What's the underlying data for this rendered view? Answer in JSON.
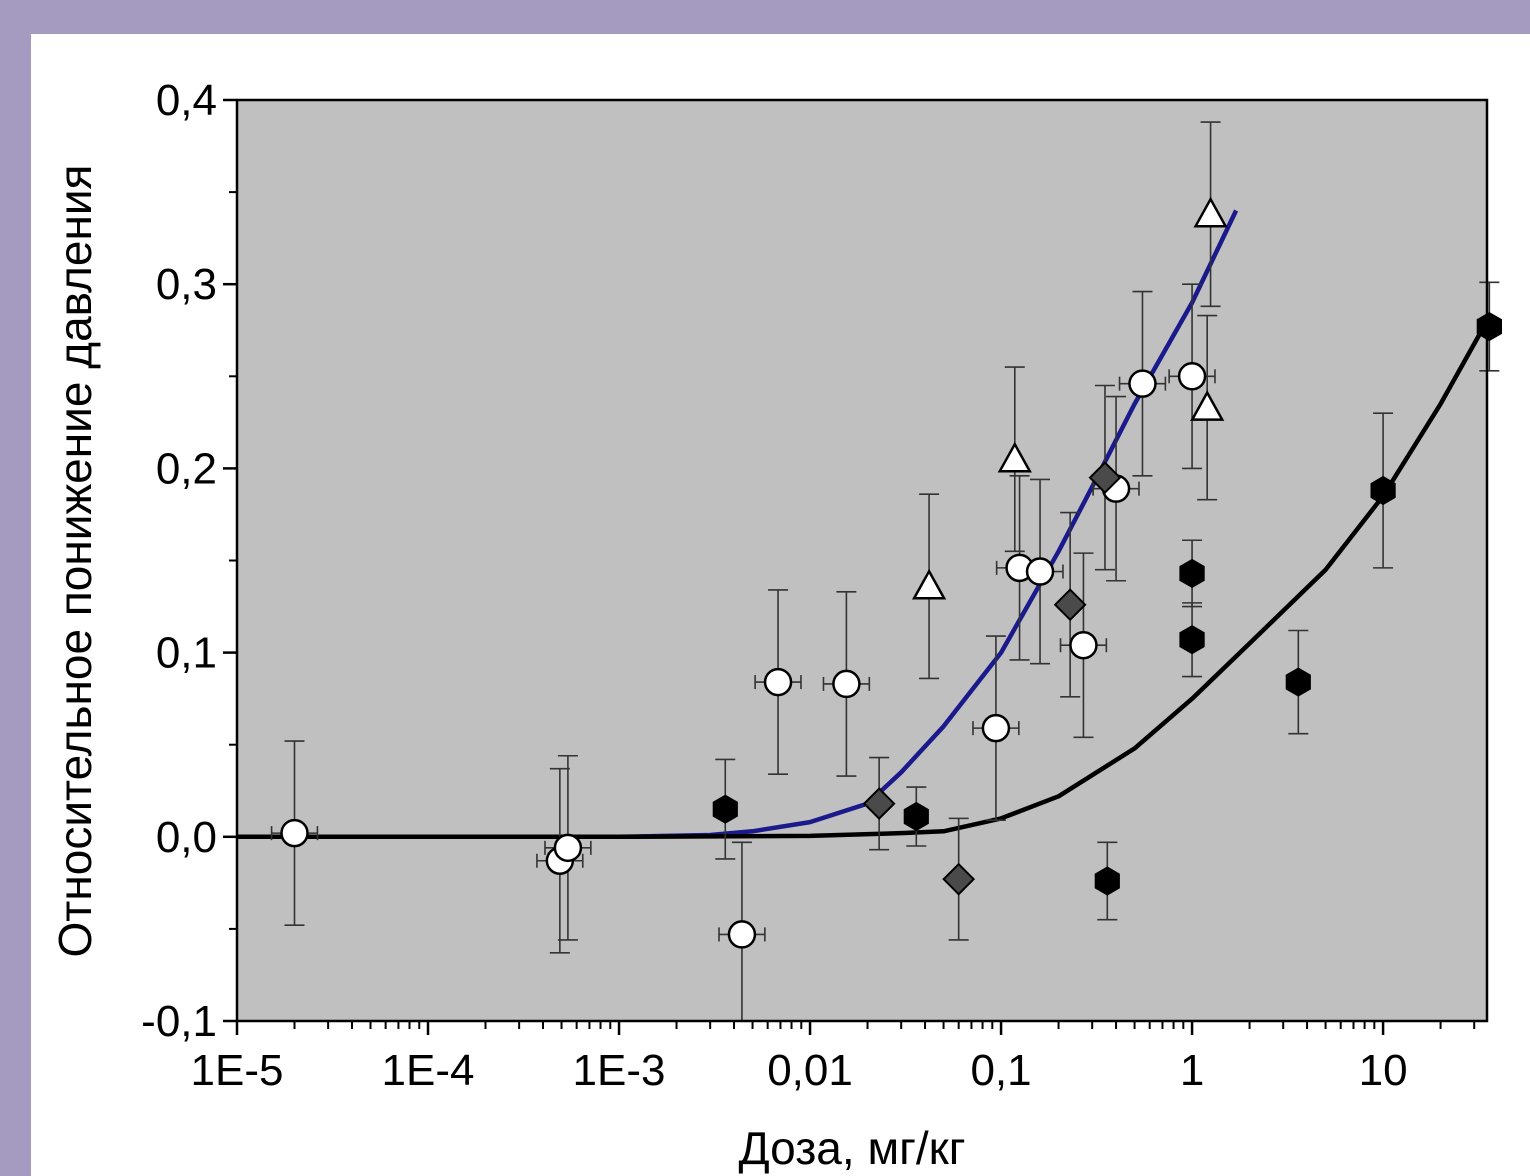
{
  "chart_data": {
    "type": "scatter",
    "title": "",
    "xlabel": "Доза, мг/кг",
    "ylabel": "Относительное понижение давления",
    "xscale": "log",
    "xlim": [
      1e-05,
      35
    ],
    "ylim": [
      -0.1,
      0.4
    ],
    "x_ticks": [
      {
        "value": 1e-05,
        "label": "1E-5"
      },
      {
        "value": 0.0001,
        "label": "1E-4"
      },
      {
        "value": 0.001,
        "label": "1E-3"
      },
      {
        "value": 0.01,
        "label": "0,01"
      },
      {
        "value": 0.1,
        "label": "0,1"
      },
      {
        "value": 1,
        "label": "1"
      },
      {
        "value": 10,
        "label": "10"
      }
    ],
    "y_ticks": [
      {
        "value": -0.1,
        "label": "-0,1"
      },
      {
        "value": 0.0,
        "label": "0,0"
      },
      {
        "value": 0.1,
        "label": "0,1"
      },
      {
        "value": 0.2,
        "label": "0,2"
      },
      {
        "value": 0.3,
        "label": "0,3"
      },
      {
        "value": 0.4,
        "label": "0,4"
      }
    ],
    "grid": false,
    "plot_background": "#c0c0c0",
    "series": [
      {
        "marker": "circle-open",
        "points": [
          {
            "x": 2e-05,
            "y": 0.002,
            "yerr": 0.05,
            "xerr_log": 0.12
          },
          {
            "x": 0.00049,
            "y": -0.013,
            "yerr": 0.05,
            "xerr_log": 0.12
          },
          {
            "x": 0.00054,
            "y": -0.006,
            "yerr": 0.05,
            "xerr_log": 0.12
          },
          {
            "x": 0.0044,
            "y": -0.053,
            "yerr": 0.05,
            "xerr_log": 0.12
          },
          {
            "x": 0.0068,
            "y": 0.084,
            "yerr": 0.05,
            "xerr_log": 0.12
          },
          {
            "x": 0.0155,
            "y": 0.083,
            "yerr": 0.05,
            "xerr_log": 0.12
          },
          {
            "x": 0.094,
            "y": 0.059,
            "yerr": 0.05,
            "xerr_log": 0.12
          },
          {
            "x": 0.125,
            "y": 0.146,
            "yerr": 0.05,
            "xerr_log": 0.12
          },
          {
            "x": 0.16,
            "y": 0.144,
            "yerr": 0.05,
            "xerr_log": 0.12
          },
          {
            "x": 0.27,
            "y": 0.104,
            "yerr": 0.05,
            "xerr_log": 0.12
          },
          {
            "x": 0.4,
            "y": 0.189,
            "yerr": 0.05,
            "xerr_log": 0.12
          },
          {
            "x": 0.55,
            "y": 0.246,
            "yerr": 0.05,
            "xerr_log": 0.12
          },
          {
            "x": 1.0,
            "y": 0.25,
            "yerr": 0.05,
            "xerr_log": 0.12
          }
        ]
      },
      {
        "marker": "triangle-open",
        "points": [
          {
            "x": 0.042,
            "y": 0.136,
            "yerr": 0.05
          },
          {
            "x": 0.118,
            "y": 0.205,
            "yerr": 0.05
          },
          {
            "x": 1.2,
            "y": 0.233,
            "yerr": 0.05
          },
          {
            "x": 1.25,
            "y": 0.338,
            "yerr": 0.05
          }
        ]
      },
      {
        "marker": "diamond-filled",
        "points": [
          {
            "x": 0.023,
            "y": 0.018,
            "yerr": 0.025
          },
          {
            "x": 0.06,
            "y": -0.023,
            "yerr": 0.033
          },
          {
            "x": 0.23,
            "y": 0.126,
            "yerr": 0.05
          },
          {
            "x": 0.35,
            "y": 0.195,
            "yerr": 0.05
          }
        ]
      },
      {
        "marker": "hexagon-filled",
        "points": [
          {
            "x": 0.0036,
            "y": 0.015,
            "yerr": 0.027
          },
          {
            "x": 0.036,
            "y": 0.011,
            "yerr": 0.016
          },
          {
            "x": 0.36,
            "y": -0.024,
            "yerr": 0.021
          },
          {
            "x": 1.0,
            "y": 0.143,
            "yerr": 0.018
          },
          {
            "x": 1.0,
            "y": 0.107,
            "yerr": 0.02
          },
          {
            "x": 3.6,
            "y": 0.084,
            "yerr": 0.028
          },
          {
            "x": 10.0,
            "y": 0.188,
            "yerr": 0.042
          },
          {
            "x": 36.0,
            "y": 0.277,
            "yerr": 0.024
          }
        ]
      }
    ],
    "fits": [
      {
        "color": "#1a1a8c",
        "points": [
          [
            1e-05,
            0.0
          ],
          [
            0.001,
            0.0
          ],
          [
            0.003,
            0.001
          ],
          [
            0.005,
            0.003
          ],
          [
            0.01,
            0.008
          ],
          [
            0.02,
            0.018
          ],
          [
            0.03,
            0.035
          ],
          [
            0.05,
            0.06
          ],
          [
            0.1,
            0.1
          ],
          [
            0.2,
            0.155
          ],
          [
            0.3,
            0.19
          ],
          [
            0.5,
            0.235
          ],
          [
            1.0,
            0.29
          ],
          [
            1.7,
            0.34
          ]
        ]
      },
      {
        "color": "#000000",
        "points": [
          [
            1e-05,
            0.0
          ],
          [
            0.001,
            0.0
          ],
          [
            0.01,
            0.0005
          ],
          [
            0.03,
            0.002
          ],
          [
            0.05,
            0.003
          ],
          [
            0.1,
            0.01
          ],
          [
            0.2,
            0.022
          ],
          [
            0.5,
            0.048
          ],
          [
            1.0,
            0.075
          ],
          [
            2.0,
            0.105
          ],
          [
            5.0,
            0.145
          ],
          [
            10.0,
            0.185
          ],
          [
            20.0,
            0.235
          ],
          [
            35.0,
            0.28
          ]
        ]
      }
    ]
  }
}
